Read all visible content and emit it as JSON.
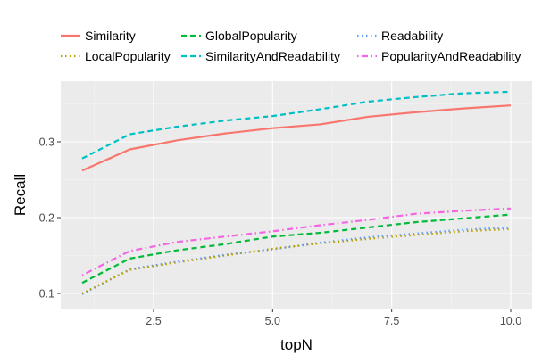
{
  "chart_data": {
    "type": "line",
    "xlabel": "topN",
    "ylabel": "Recall",
    "xlim": [
      0.55,
      10.45
    ],
    "ylim": [
      0.08,
      0.38
    ],
    "x_ticks": [
      2.5,
      5.0,
      7.5,
      10.0
    ],
    "x_tick_labels": [
      "2.5",
      "5.0",
      "7.5",
      "10.0"
    ],
    "y_ticks": [
      0.1,
      0.2,
      0.3
    ],
    "y_tick_labels": [
      "0.1",
      "0.2",
      "0.3"
    ],
    "grid": true,
    "legend_position": "top",
    "x": [
      1,
      2,
      3,
      4,
      5,
      6,
      7,
      8,
      9,
      10
    ],
    "series": [
      {
        "name": "Similarity",
        "color": "#F8766D",
        "dash": "solid",
        "values": [
          0.262,
          0.29,
          0.302,
          0.311,
          0.318,
          0.323,
          0.333,
          0.339,
          0.344,
          0.348
        ]
      },
      {
        "name": "GlobalPopularity",
        "color": "#00BA38",
        "dash": "dashed",
        "values": [
          0.114,
          0.146,
          0.157,
          0.165,
          0.175,
          0.18,
          0.187,
          0.194,
          0.199,
          0.204
        ]
      },
      {
        "name": "Readability",
        "color": "#619CFF",
        "dash": "dotted",
        "values": [
          0.099,
          0.132,
          0.142,
          0.151,
          0.158,
          0.167,
          0.174,
          0.179,
          0.184,
          0.187
        ]
      },
      {
        "name": "LocalPopularity",
        "color": "#B79F00",
        "dash": "dotted",
        "values": [
          0.1,
          0.131,
          0.141,
          0.15,
          0.159,
          0.166,
          0.172,
          0.177,
          0.182,
          0.185
        ]
      },
      {
        "name": "SimilarityAndReadability",
        "color": "#00BFC4",
        "dash": "dashed",
        "values": [
          0.278,
          0.31,
          0.32,
          0.328,
          0.334,
          0.343,
          0.353,
          0.359,
          0.364,
          0.366
        ]
      },
      {
        "name": "PopularityAndReadability",
        "color": "#F564E3",
        "dash": "dotdash",
        "values": [
          0.124,
          0.156,
          0.168,
          0.175,
          0.182,
          0.19,
          0.197,
          0.205,
          0.209,
          0.212
        ]
      }
    ],
    "legend_order": [
      "Similarity",
      "GlobalPopularity",
      "Readability",
      "LocalPopularity",
      "SimilarityAndReadability",
      "PopularityAndReadability"
    ]
  }
}
